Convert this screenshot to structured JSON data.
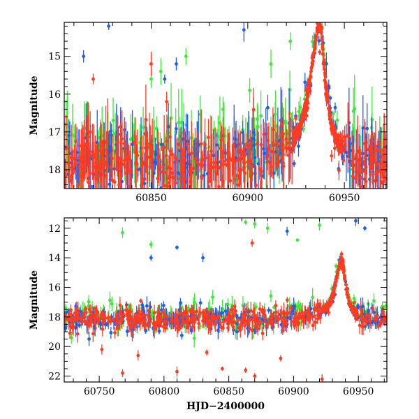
{
  "chart_data": [
    {
      "type": "scatter",
      "title": "",
      "xlabel": "",
      "ylabel": "Magnitude",
      "xlim": [
        60805,
        60972
      ],
      "ylim": [
        18.5,
        14.1
      ],
      "xticks": [
        60850,
        60900,
        60950
      ],
      "yticks": [
        15,
        16,
        17,
        18
      ],
      "peak": {
        "x": 60937,
        "mag": 14.2
      },
      "baseline_mag": 17.8,
      "series": [
        {
          "name": "blue band",
          "color": "#1f5fe6",
          "count": 260
        },
        {
          "name": "green band",
          "color": "#3fe83a",
          "count": 200
        },
        {
          "name": "red band",
          "color": "#ff3b22",
          "count": 380
        }
      ],
      "outliers": [
        {
          "series": 0,
          "x": 60828,
          "mag": 14.2
        },
        {
          "series": 0,
          "x": 60815,
          "mag": 15.0
        },
        {
          "series": 0,
          "x": 60863,
          "mag": 15.2
        },
        {
          "series": 0,
          "x": 60898,
          "mag": 14.3
        },
        {
          "series": 0,
          "x": 60857,
          "mag": 15.6
        },
        {
          "series": 1,
          "x": 60850,
          "mag": 15.6
        },
        {
          "series": 1,
          "x": 60855,
          "mag": 15.4
        },
        {
          "series": 1,
          "x": 60868,
          "mag": 15.0
        },
        {
          "series": 1,
          "x": 60912,
          "mag": 15.2
        },
        {
          "series": 1,
          "x": 60922,
          "mag": 14.6
        },
        {
          "series": 1,
          "x": 60901,
          "mag": 15.9
        },
        {
          "series": 2,
          "x": 60820,
          "mag": 15.6
        },
        {
          "series": 2,
          "x": 60850,
          "mag": 15.2
        },
        {
          "series": 2,
          "x": 60858,
          "mag": 16.2
        }
      ]
    },
    {
      "type": "scatter",
      "title": "",
      "xlabel": "HJD−2400000",
      "ylabel": "Magnitude",
      "xlim": [
        60723,
        60972
      ],
      "ylim": [
        22.4,
        11.3
      ],
      "xticks": [
        60750,
        60800,
        60850,
        60900,
        60950
      ],
      "yticks": [
        12,
        14,
        16,
        18,
        20,
        22
      ],
      "peak": {
        "x": 60937,
        "mag": 14.2
      },
      "baseline_mag": 18.2,
      "series": [
        {
          "name": "blue band",
          "color": "#1f5fe6",
          "count": 300
        },
        {
          "name": "green band",
          "color": "#3fe83a",
          "count": 220
        },
        {
          "name": "red band",
          "color": "#ff3b22",
          "count": 420
        }
      ],
      "outliers": [
        {
          "series": 1,
          "x": 60768,
          "mag": 12.3
        },
        {
          "series": 1,
          "x": 60790,
          "mag": 13.1
        },
        {
          "series": 0,
          "x": 60810,
          "mag": 13.3
        },
        {
          "series": 0,
          "x": 60790,
          "mag": 14.0
        },
        {
          "series": 0,
          "x": 60830,
          "mag": 14.0
        },
        {
          "series": 1,
          "x": 60863,
          "mag": 11.6
        },
        {
          "series": 1,
          "x": 60870,
          "mag": 11.7
        },
        {
          "series": 1,
          "x": 60880,
          "mag": 12.0
        },
        {
          "series": 2,
          "x": 60868,
          "mag": 13.0
        },
        {
          "series": 0,
          "x": 60895,
          "mag": 12.2
        },
        {
          "series": 1,
          "x": 60920,
          "mag": 11.8
        },
        {
          "series": 0,
          "x": 60948,
          "mag": 11.5
        },
        {
          "series": 0,
          "x": 60955,
          "mag": 12.0
        },
        {
          "series": 1,
          "x": 60903,
          "mag": 12.8
        },
        {
          "series": 2,
          "x": 60768,
          "mag": 21.8
        },
        {
          "series": 2,
          "x": 60810,
          "mag": 21.7
        },
        {
          "series": 2,
          "x": 60845,
          "mag": 21.5
        },
        {
          "series": 2,
          "x": 60863,
          "mag": 21.6
        },
        {
          "series": 2,
          "x": 60870,
          "mag": 22.0
        },
        {
          "series": 2,
          "x": 60922,
          "mag": 22.2
        },
        {
          "series": 2,
          "x": 60752,
          "mag": 20.2
        },
        {
          "series": 2,
          "x": 60780,
          "mag": 20.6
        },
        {
          "series": 2,
          "x": 60833,
          "mag": 20.4
        },
        {
          "series": 2,
          "x": 60890,
          "mag": 20.8
        }
      ]
    }
  ]
}
